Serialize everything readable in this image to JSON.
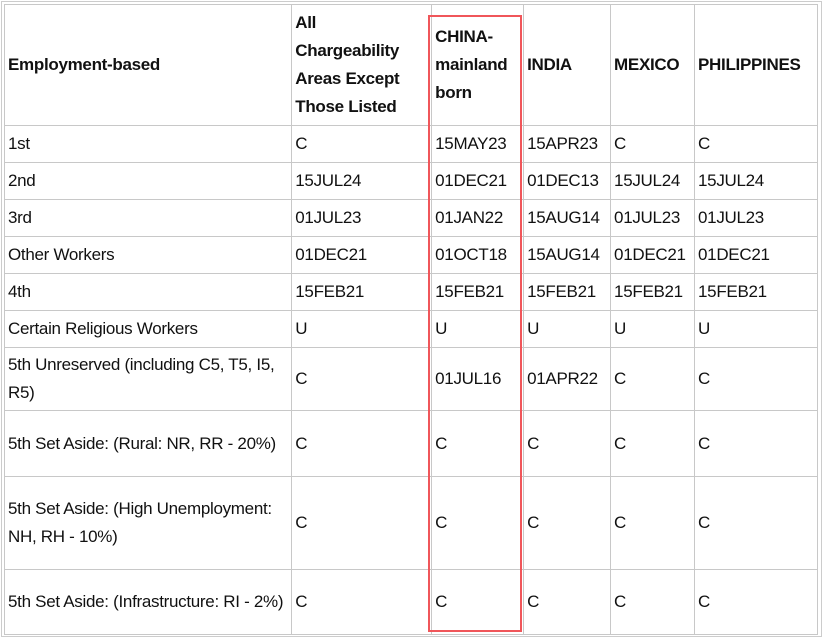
{
  "table": {
    "headers": [
      "Employment-based",
      "All Chargeability Areas Except Those Listed",
      "CHINA-mainland born",
      "INDIA",
      "MEXICO",
      "PHILIPPINES"
    ],
    "rows": [
      {
        "category": "1st",
        "values": [
          "C",
          "15MAY23",
          "15APR23",
          "C",
          "C"
        ]
      },
      {
        "category": "2nd",
        "values": [
          "15JUL24",
          "01DEC21",
          "01DEC13",
          "15JUL24",
          "15JUL24"
        ]
      },
      {
        "category": "3rd",
        "values": [
          "01JUL23",
          "01JAN22",
          "15AUG14",
          "01JUL23",
          "01JUL23"
        ]
      },
      {
        "category": "Other Workers",
        "values": [
          "01DEC21",
          "01OCT18",
          "15AUG14",
          "01DEC21",
          "01DEC21"
        ]
      },
      {
        "category": "4th",
        "values": [
          "15FEB21",
          "15FEB21",
          "15FEB21",
          "15FEB21",
          "15FEB21"
        ]
      },
      {
        "category": "Certain Religious Workers",
        "values": [
          "U",
          "U",
          "U",
          "U",
          "U"
        ]
      },
      {
        "category": "5th Unreserved (including C5, T5, I5, R5)",
        "values": [
          "C",
          "01JUL16",
          "01APR22",
          "C",
          "C"
        ]
      },
      {
        "category": "5th Set Aside: (Rural: NR, RR - 20%)",
        "values": [
          "C",
          "C",
          "C",
          "C",
          "C"
        ]
      },
      {
        "category": "5th Set Aside: (High Unemployment: NH, RH - 10%)",
        "values": [
          "C",
          "C",
          "C",
          "C",
          "C"
        ]
      },
      {
        "category": "5th Set Aside: (Infrastructure: RI - 2%)",
        "values": [
          "C",
          "C",
          "C",
          "C",
          "C"
        ]
      }
    ]
  },
  "highlight_color": "#f0565a",
  "highlighted_column": "CHINA-mainland born"
}
